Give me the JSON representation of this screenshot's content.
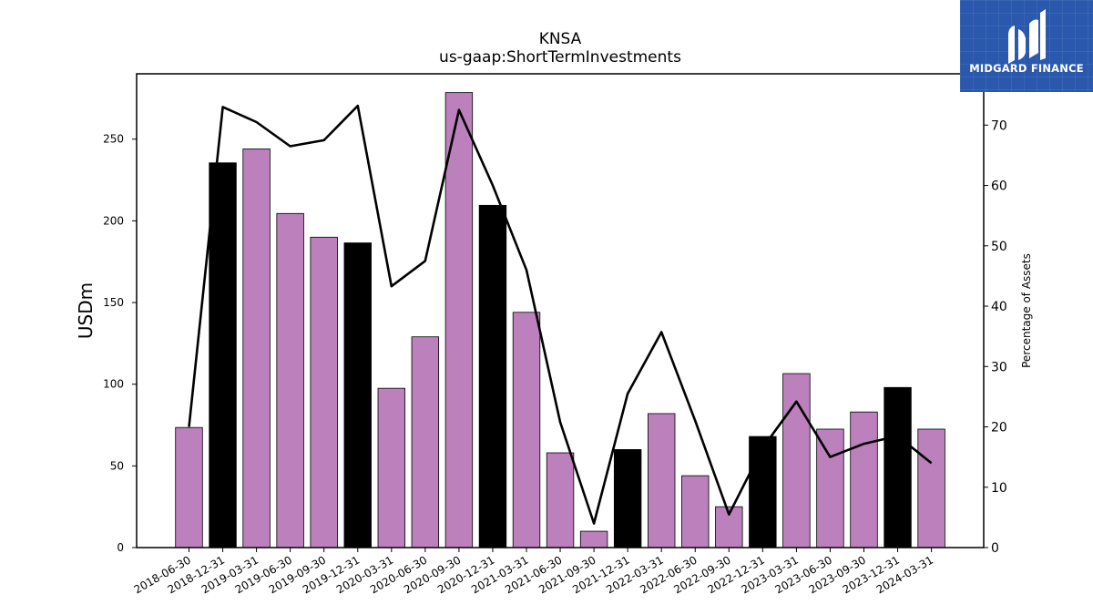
{
  "chart_data": {
    "type": "bar",
    "title": "KNSA",
    "subtitle": "us-gaap:ShortTermInvestments",
    "ylabel": "USDm",
    "y2label": "Percentage of Assets",
    "ylim": [
      0,
      290
    ],
    "y2lim": [
      0,
      78.5
    ],
    "yticks": [
      0,
      50,
      100,
      150,
      200,
      250
    ],
    "y2ticks": [
      0,
      10,
      20,
      30,
      40,
      50,
      60,
      70
    ],
    "categories": [
      "2018-06-30",
      "2018-12-31",
      "2019-03-31",
      "2019-06-30",
      "2019-09-30",
      "2019-12-31",
      "2020-03-31",
      "2020-06-30",
      "2020-09-30",
      "2020-12-31",
      "2021-03-31",
      "2021-06-30",
      "2021-09-30",
      "2021-12-31",
      "2022-03-31",
      "2022-06-30",
      "2022-09-30",
      "2022-12-31",
      "2023-03-31",
      "2023-06-30",
      "2023-09-30",
      "2023-12-31",
      "2024-03-31"
    ],
    "series": [
      {
        "kind": "bar",
        "values": [
          73.5,
          235.5,
          244,
          204.5,
          190,
          186.5,
          97.5,
          129,
          278.5,
          209.5,
          144,
          58,
          10,
          60,
          82,
          44,
          25,
          68,
          106.5,
          72.5,
          83,
          98,
          72.5
        ],
        "highlight": [
          false,
          true,
          false,
          false,
          false,
          true,
          false,
          false,
          false,
          true,
          false,
          false,
          false,
          true,
          false,
          false,
          false,
          true,
          false,
          false,
          false,
          true,
          false
        ],
        "color": "#bc80bd",
        "highlight_color": "#000000"
      },
      {
        "kind": "line",
        "axis": "right",
        "values": [
          20,
          73,
          70.5,
          66.5,
          67.5,
          73.2,
          43.3,
          47.5,
          72.5,
          60,
          46,
          20.8,
          4,
          25.5,
          35.7,
          21,
          5.5,
          16.5,
          24.2,
          15,
          17.2,
          18.5,
          14
        ],
        "color": "#000000"
      }
    ]
  },
  "logo": {
    "text": "MIDGARD FINANCE"
  }
}
